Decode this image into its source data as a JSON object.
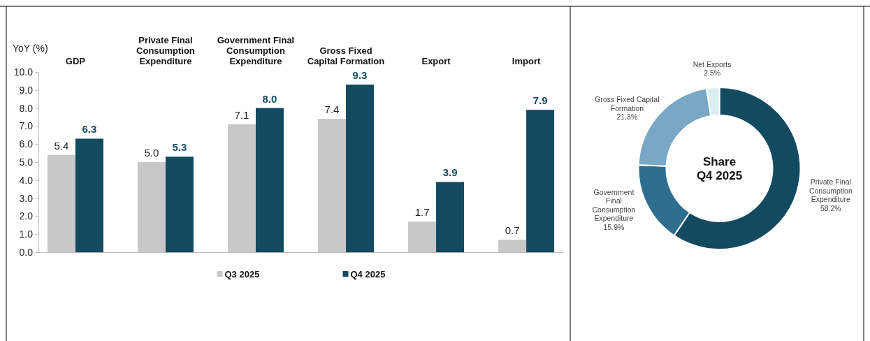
{
  "chart_data": [
    {
      "type": "bar",
      "ylabel": "YoY (%)",
      "categories": [
        "GDP",
        "Private Final Consumption Expenditure",
        "Government Final Consumption Expenditure",
        "Gross Fixed Capital Formation",
        "Export",
        "Import"
      ],
      "series": [
        {
          "name": "Q3 2025",
          "color": "#c8c8c8",
          "values": [
            5.4,
            5.0,
            7.1,
            7.4,
            1.7,
            0.7
          ],
          "value_labels": [
            "5.4",
            "5.0",
            "7.1",
            "7.4",
            "1.7",
            "0.7"
          ]
        },
        {
          "name": "Q4 2025",
          "color": "#124a60",
          "values": [
            6.3,
            5.3,
            8.0,
            9.3,
            3.9,
            7.9
          ],
          "value_labels": [
            "6.3",
            "5.3",
            "8.0",
            "9.3",
            "3.9",
            "7.9"
          ]
        }
      ],
      "ylim": [
        0,
        10
      ],
      "yticks": [
        {
          "value": 0,
          "label": "0.0"
        },
        {
          "value": 1,
          "label": "1.0"
        },
        {
          "value": 2,
          "label": "2.0"
        },
        {
          "value": 3,
          "label": "3.0"
        },
        {
          "value": 4,
          "label": "4.0"
        },
        {
          "value": 5,
          "label": "5.0"
        },
        {
          "value": 6,
          "label": "6.0"
        },
        {
          "value": 7,
          "label": "7.0"
        },
        {
          "value": 8,
          "label": "8.0"
        },
        {
          "value": 9,
          "label": "9.0"
        },
        {
          "value": 10,
          "label": "10.0"
        }
      ],
      "legend": "bottom"
    },
    {
      "type": "donut",
      "title": "Share Q4 2025",
      "categories": [
        "Private Final Consumption Expenditure",
        "Government Final Consumption Expenditure",
        "Gross Fixed Capital Formation",
        "Net Exports"
      ],
      "values": [
        58.2,
        15.9,
        21.3,
        2.5
      ],
      "value_labels": [
        "58.2%",
        "15.9%",
        "21.3%",
        "2.5%"
      ],
      "colors": [
        "#124a60",
        "#2e6e8e",
        "#79a7c6",
        "#dbeef2"
      ]
    }
  ]
}
